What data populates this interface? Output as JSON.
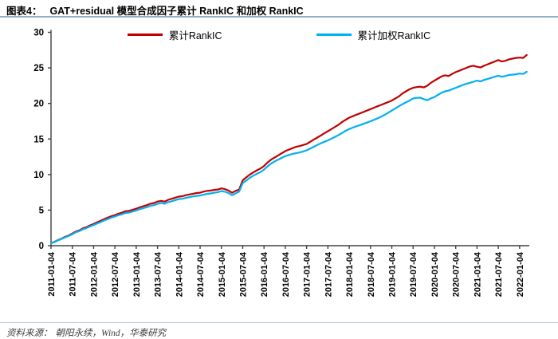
{
  "header": {
    "figure_label": "图表4：",
    "title": "GAT+residual 模型合成因子累计 RankIC 和加权 RankIC"
  },
  "footer": {
    "source_label": "资料来源：",
    "source_text": "朝阳永续，Wind，华泰研究"
  },
  "colors": {
    "red_series": "#C00000",
    "blue_series": "#00B0F0",
    "axis": "#404040",
    "rule": "#93aec9"
  },
  "chart_data": {
    "type": "line",
    "title": "",
    "xlabel": "",
    "ylabel": "",
    "ylim": [
      0,
      30
    ],
    "y_ticks": [
      0,
      5,
      10,
      15,
      20,
      25,
      30
    ],
    "grid": false,
    "legend_position": "top",
    "months_per_tick": 6,
    "x_tick_labels": [
      "2011-01-04",
      "2011-07-04",
      "2012-01-04",
      "2012-07-04",
      "2013-01-04",
      "2013-07-04",
      "2014-01-04",
      "2014-07-04",
      "2015-01-04",
      "2015-07-04",
      "2016-01-04",
      "2016-07-04",
      "2017-01-04",
      "2017-07-04",
      "2018-01-04",
      "2018-07-04",
      "2019-01-04",
      "2019-07-04",
      "2020-01-04",
      "2020-07-04",
      "2021-01-04",
      "2021-07-04",
      "2022-01-04"
    ],
    "series": [
      {
        "name": "累计RankIC",
        "key": "cumulative-rankic",
        "color": "#C00000",
        "values": [
          0.35,
          0.55,
          0.8,
          1.0,
          1.25,
          1.45,
          1.7,
          2.0,
          2.15,
          2.45,
          2.6,
          2.85,
          3.05,
          3.3,
          3.5,
          3.75,
          3.95,
          4.15,
          4.3,
          4.5,
          4.65,
          4.85,
          4.9,
          5.05,
          5.2,
          5.4,
          5.55,
          5.7,
          5.9,
          6.0,
          6.2,
          6.3,
          6.2,
          6.45,
          6.6,
          6.75,
          6.9,
          6.95,
          7.1,
          7.2,
          7.3,
          7.4,
          7.45,
          7.6,
          7.7,
          7.75,
          7.85,
          7.9,
          8.05,
          7.95,
          7.75,
          7.45,
          7.7,
          7.9,
          9.2,
          9.6,
          10.0,
          10.3,
          10.6,
          10.85,
          11.2,
          11.7,
          12.1,
          12.4,
          12.7,
          13.0,
          13.3,
          13.5,
          13.7,
          13.9,
          14.0,
          14.15,
          14.3,
          14.6,
          14.9,
          15.2,
          15.5,
          15.8,
          16.1,
          16.4,
          16.7,
          17.0,
          17.4,
          17.7,
          18.0,
          18.2,
          18.4,
          18.6,
          18.8,
          19.0,
          19.2,
          19.4,
          19.6,
          19.8,
          20.0,
          20.2,
          20.4,
          20.7,
          21.0,
          21.4,
          21.7,
          22.0,
          22.2,
          22.3,
          22.35,
          22.25,
          22.5,
          22.9,
          23.2,
          23.5,
          23.8,
          23.95,
          23.85,
          24.15,
          24.4,
          24.6,
          24.8,
          25.0,
          25.2,
          25.3,
          25.15,
          25.05,
          25.3,
          25.5,
          25.7,
          25.9,
          26.1,
          25.9,
          26.0,
          26.2,
          26.3,
          26.4,
          26.45,
          26.4,
          26.8
        ]
      },
      {
        "name": "累计加权RankIC",
        "key": "cumulative-weighted-rankic",
        "color": "#00B0F0",
        "values": [
          0.35,
          0.52,
          0.75,
          0.95,
          1.18,
          1.38,
          1.6,
          1.9,
          2.05,
          2.32,
          2.48,
          2.7,
          2.9,
          3.12,
          3.32,
          3.55,
          3.75,
          3.95,
          4.1,
          4.28,
          4.42,
          4.6,
          4.65,
          4.8,
          4.95,
          5.12,
          5.28,
          5.42,
          5.6,
          5.7,
          5.88,
          6.0,
          5.9,
          6.12,
          6.25,
          6.4,
          6.55,
          6.6,
          6.72,
          6.82,
          6.92,
          7.0,
          7.05,
          7.18,
          7.28,
          7.35,
          7.45,
          7.52,
          7.68,
          7.58,
          7.4,
          7.1,
          7.35,
          7.6,
          8.8,
          9.15,
          9.55,
          9.85,
          10.1,
          10.35,
          10.7,
          11.15,
          11.55,
          11.85,
          12.1,
          12.35,
          12.6,
          12.75,
          12.9,
          13.0,
          13.1,
          13.25,
          13.4,
          13.65,
          13.9,
          14.15,
          14.4,
          14.6,
          14.8,
          15.05,
          15.3,
          15.55,
          15.85,
          16.15,
          16.4,
          16.6,
          16.78,
          16.95,
          17.12,
          17.3,
          17.5,
          17.7,
          17.9,
          18.15,
          18.4,
          18.7,
          19.0,
          19.3,
          19.6,
          19.9,
          20.15,
          20.4,
          20.7,
          20.78,
          20.82,
          20.6,
          20.45,
          20.7,
          20.9,
          21.2,
          21.5,
          21.7,
          21.8,
          22.0,
          22.2,
          22.4,
          22.6,
          22.75,
          22.9,
          23.05,
          23.2,
          23.1,
          23.3,
          23.45,
          23.6,
          23.75,
          23.9,
          23.75,
          23.85,
          24.0,
          24.05,
          24.1,
          24.2,
          24.15,
          24.45
        ]
      }
    ]
  }
}
